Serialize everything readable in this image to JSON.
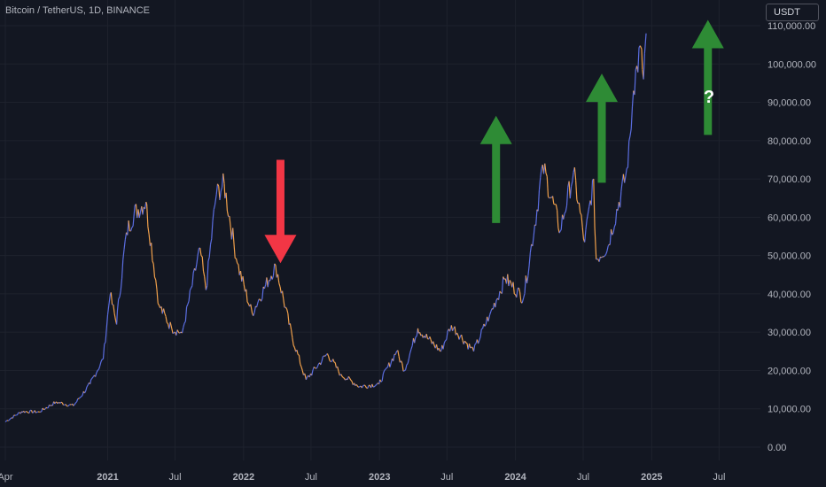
{
  "header": {
    "symbol_line": "Bitcoin / TetherUS, 1D, BINANCE"
  },
  "currency_button": {
    "label": "USDT"
  },
  "annotations": {
    "question_mark": "?"
  },
  "colors": {
    "background": "#131722",
    "grid": "#1e222d",
    "axis_text": "#b2b5be",
    "candle_up": "#5b6ee1",
    "candle_down": "#f0a04b",
    "arrow_up": "#2e8b35",
    "arrow_down": "#f23645"
  },
  "chart_data": {
    "type": "line",
    "title": "",
    "xlabel": "",
    "ylabel": "",
    "ylim": [
      0,
      110000
    ],
    "y_ticks": [
      {
        "value": 0,
        "label": "0.00"
      },
      {
        "value": 10000,
        "label": "10,000.00"
      },
      {
        "value": 20000,
        "label": "20,000.00"
      },
      {
        "value": 30000,
        "label": "30,000.00"
      },
      {
        "value": 40000,
        "label": "40,000.00"
      },
      {
        "value": 50000,
        "label": "50,000.00"
      },
      {
        "value": 60000,
        "label": "60,000.00"
      },
      {
        "value": 70000,
        "label": "70,000.00"
      },
      {
        "value": 80000,
        "label": "80,000.00"
      },
      {
        "value": 90000,
        "label": "90,000.00"
      },
      {
        "value": 100000,
        "label": "100,000.00"
      },
      {
        "value": 110000,
        "label": "110,000.00"
      }
    ],
    "x_range": [
      "2020-04-01",
      "2025-10-20"
    ],
    "x_ticks": [
      {
        "date": "2020-04-01",
        "label": "Apr",
        "bold": false
      },
      {
        "date": "2021-01-01",
        "label": "2021",
        "bold": true
      },
      {
        "date": "2021-07-01",
        "label": "Jul",
        "bold": false
      },
      {
        "date": "2022-01-01",
        "label": "2022",
        "bold": true
      },
      {
        "date": "2022-07-01",
        "label": "Jul",
        "bold": false
      },
      {
        "date": "2023-01-01",
        "label": "2023",
        "bold": true
      },
      {
        "date": "2023-07-01",
        "label": "Jul",
        "bold": false
      },
      {
        "date": "2024-01-01",
        "label": "2024",
        "bold": true
      },
      {
        "date": "2024-07-01",
        "label": "Jul",
        "bold": false
      },
      {
        "date": "2025-01-01",
        "label": "2025",
        "bold": true
      },
      {
        "date": "2025-07-01",
        "label": "Jul",
        "bold": false
      }
    ],
    "series": [
      {
        "points": [
          [
            "2020-04-01",
            6600
          ],
          [
            "2020-05-15",
            9300
          ],
          [
            "2020-07-01",
            9200
          ],
          [
            "2020-08-15",
            11800
          ],
          [
            "2020-10-01",
            10800
          ],
          [
            "2020-11-15",
            16500
          ],
          [
            "2020-12-20",
            23000
          ],
          [
            "2021-01-08",
            40000
          ],
          [
            "2021-01-25",
            32000
          ],
          [
            "2021-02-20",
            56000
          ],
          [
            "2021-03-13",
            61000
          ],
          [
            "2021-04-14",
            64000
          ],
          [
            "2021-05-19",
            37000
          ],
          [
            "2021-06-22",
            31000
          ],
          [
            "2021-07-20",
            29800
          ],
          [
            "2021-09-06",
            52000
          ],
          [
            "2021-09-22",
            41000
          ],
          [
            "2021-10-20",
            66000
          ],
          [
            "2021-11-10",
            68800
          ],
          [
            "2021-12-15",
            48000
          ],
          [
            "2022-01-24",
            35000
          ],
          [
            "2022-03-28",
            47500
          ],
          [
            "2022-05-12",
            28500
          ],
          [
            "2022-06-18",
            17600
          ],
          [
            "2022-08-14",
            24400
          ],
          [
            "2022-09-20",
            19000
          ],
          [
            "2022-11-09",
            15800
          ],
          [
            "2022-12-31",
            16500
          ],
          [
            "2023-02-16",
            25000
          ],
          [
            "2023-03-10",
            20000
          ],
          [
            "2023-04-14",
            31000
          ],
          [
            "2023-06-15",
            25000
          ],
          [
            "2023-07-13",
            31800
          ],
          [
            "2023-09-11",
            25000
          ],
          [
            "2023-10-24",
            34500
          ],
          [
            "2023-12-05",
            44000
          ],
          [
            "2024-01-23",
            39000
          ],
          [
            "2024-02-28",
            62000
          ],
          [
            "2024-03-14",
            73700
          ],
          [
            "2024-05-01",
            56500
          ],
          [
            "2024-06-05",
            71800
          ],
          [
            "2024-07-05",
            53500
          ],
          [
            "2024-07-29",
            70000
          ],
          [
            "2024-08-05",
            49000
          ],
          [
            "2024-09-06",
            52500
          ],
          [
            "2024-10-29",
            73000
          ],
          [
            "2024-11-13",
            93000
          ],
          [
            "2024-11-22",
            99500
          ],
          [
            "2024-12-05",
            103900
          ],
          [
            "2024-12-10",
            96000
          ],
          [
            "2024-12-17",
            108000
          ]
        ]
      }
    ],
    "annotation_arrows": [
      {
        "direction": "down",
        "date": "2022-04-10",
        "from": 75000,
        "to": 48000
      },
      {
        "direction": "up",
        "date": "2023-11-10",
        "from": 58500,
        "to": 86500
      },
      {
        "direction": "up",
        "date": "2024-08-20",
        "from": 69000,
        "to": 97500
      },
      {
        "direction": "up",
        "date": "2025-06-01",
        "from": 81500,
        "to": 111500
      }
    ]
  }
}
